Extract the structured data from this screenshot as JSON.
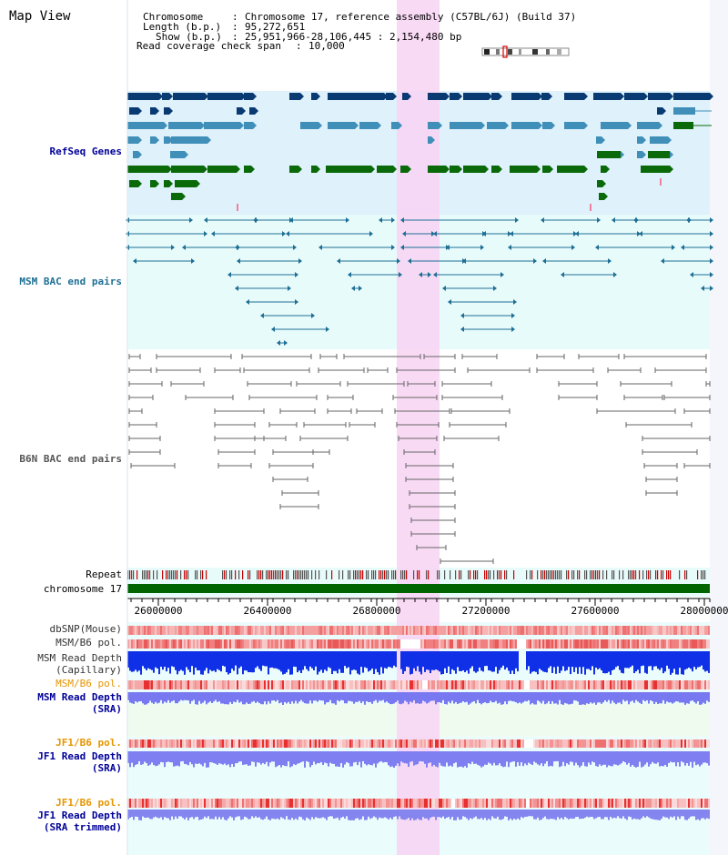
{
  "page": {
    "title": "Map View"
  },
  "info": {
    "chromosome_key": "Chromosome",
    "chromosome_val": "Chromosome 17, reference assembly (C57BL/6J) (Build 37)",
    "length_key": "Length (b.p.)",
    "length_val": "95,272,651",
    "show_key": "Show (b.p.)",
    "show_val": "25,951,966-28,106,445 : 2,154,480 bp",
    "coverage_key": "Read coverage check span",
    "coverage_val": "10,000"
  },
  "tracks": {
    "refseq": "RefSeq Genes",
    "msm_bac": "MSM BAC end pairs",
    "b6n_bac": "B6N BAC end pairs",
    "repeat": "Repeat",
    "chromosome": "chromosome 17",
    "dbsnp": "dbSNP(Mouse)",
    "msm_b6_pol_1": "MSM/B6 pol.",
    "msm_read_depth_cap_1": "MSM Read Depth",
    "msm_read_depth_cap_2": "(Capillary)",
    "msm_b6_pol_2": "MSM/B6 pol.",
    "msm_read_depth_sra_1": "MSM Read Depth",
    "msm_read_depth_sra_2": "(SRA)",
    "jf1_b6_pol_1": "JF1/B6 pol.",
    "jf1_read_depth_sra_1": "JF1 Read Depth",
    "jf1_read_depth_sra_2": "(SRA)",
    "jf1_b6_pol_2": "JF1/B6 pol.",
    "jf1_read_depth_trim_1": "JF1 Read Depth",
    "jf1_read_depth_trim_2": "(SRA trimmed)"
  },
  "axis": {
    "ticks": [
      "26000000",
      "26400000",
      "26800000",
      "27200000",
      "27600000",
      "28000000"
    ]
  },
  "colors": {
    "refseq_bg": "#dff1fb",
    "msm_bg": "#e8fbfb",
    "highlight": "#f8d3f3",
    "dark_gene": "#0a3a72",
    "mid_gene": "#3f8fb8",
    "green_gene": "#0a6a0a",
    "msm_line": "#1e6f95",
    "b6n_line": "#666666",
    "chromosome": "#006400",
    "snp": "#f08080",
    "depth_blue": "#1030e8",
    "depth_sra": "#7878f0",
    "label_navy": "#000099",
    "label_orange": "#e69500"
  }
}
